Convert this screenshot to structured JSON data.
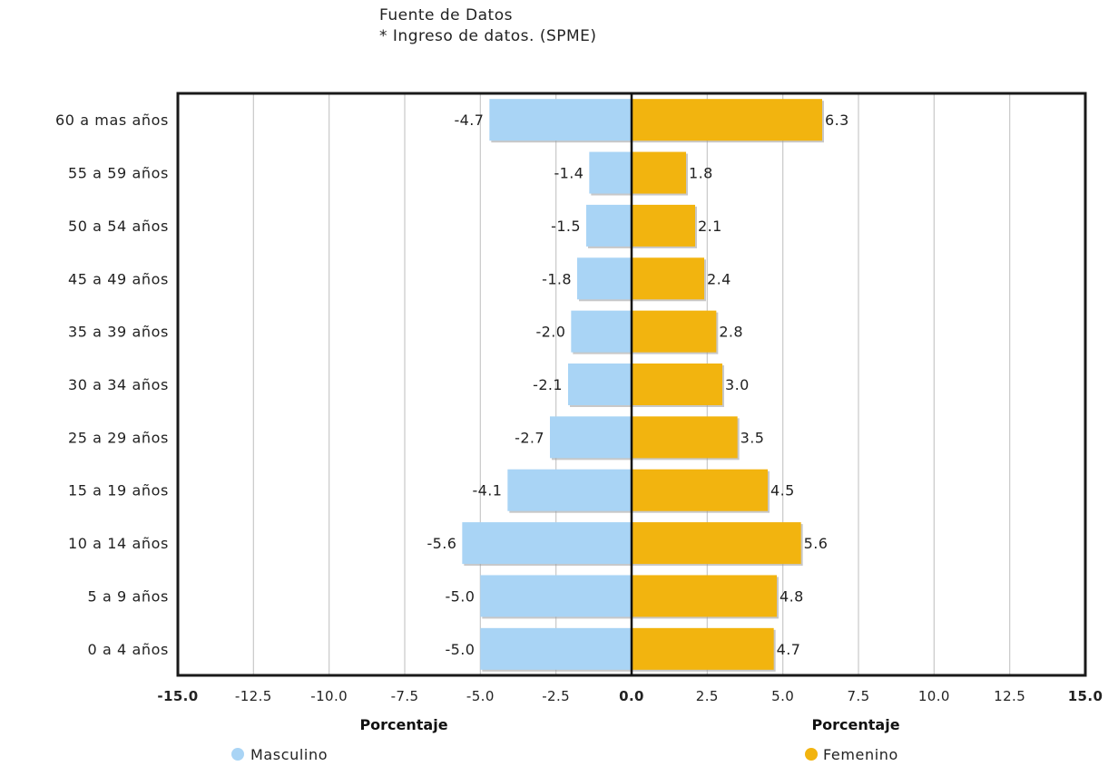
{
  "source": {
    "line1": "Fuente de Datos",
    "line2": "* Ingreso de datos. (SPME)"
  },
  "colors": {
    "masculino": "#a9d4f5",
    "femenino": "#f2b40f",
    "grid": "#c8c8c8",
    "frame": "#1a1a1a"
  },
  "chart_data": {
    "type": "bar",
    "orientation": "horizontal",
    "categories": [
      "60 a mas años",
      "55 a 59 años",
      "50 a 54 años",
      "45 a 49 años",
      "35 a 39 años",
      "30 a 34 años",
      "25 a 29 años",
      "15 a 19 años",
      "10 a 14 años",
      "5 a 9 años",
      "0 a 4 años"
    ],
    "series": [
      {
        "name": "Masculino",
        "values": [
          -4.7,
          -1.4,
          -1.5,
          -1.8,
          -2.0,
          -2.1,
          -2.7,
          -4.1,
          -5.6,
          -5.0,
          -5.0
        ],
        "labels": [
          "-4.7",
          "-1.4",
          "-1.5",
          "-1.8",
          "-2.0",
          "-2.1",
          "-2.7",
          "-4.1",
          "-5.6",
          "-5.0",
          "-5.0"
        ]
      },
      {
        "name": "Femenino",
        "values": [
          6.3,
          1.8,
          2.1,
          2.4,
          2.8,
          3.0,
          3.5,
          4.5,
          5.6,
          4.8,
          4.7
        ],
        "labels": [
          "6.3",
          "1.8",
          "2.1",
          "2.4",
          "2.8",
          "3.0",
          "3.5",
          "4.5",
          "5.6",
          "4.8",
          "4.7"
        ]
      }
    ],
    "xlim": [
      -15,
      15
    ],
    "xticks": [
      -15,
      -12.5,
      -10,
      -7.5,
      -5,
      -2.5,
      0,
      2.5,
      5,
      7.5,
      10,
      12.5,
      15
    ],
    "xtick_labels": [
      "-15.0",
      "-12.5",
      "-10.0",
      "-7.5",
      "-5.0",
      "-2.5",
      "0.0",
      "2.5",
      "5.0",
      "7.5",
      "10.0",
      "12.5",
      "15.0"
    ],
    "xlabel_left": "Porcentaje",
    "xlabel_right": "Porcentaje",
    "grid": true,
    "legend_position": "bottom"
  }
}
